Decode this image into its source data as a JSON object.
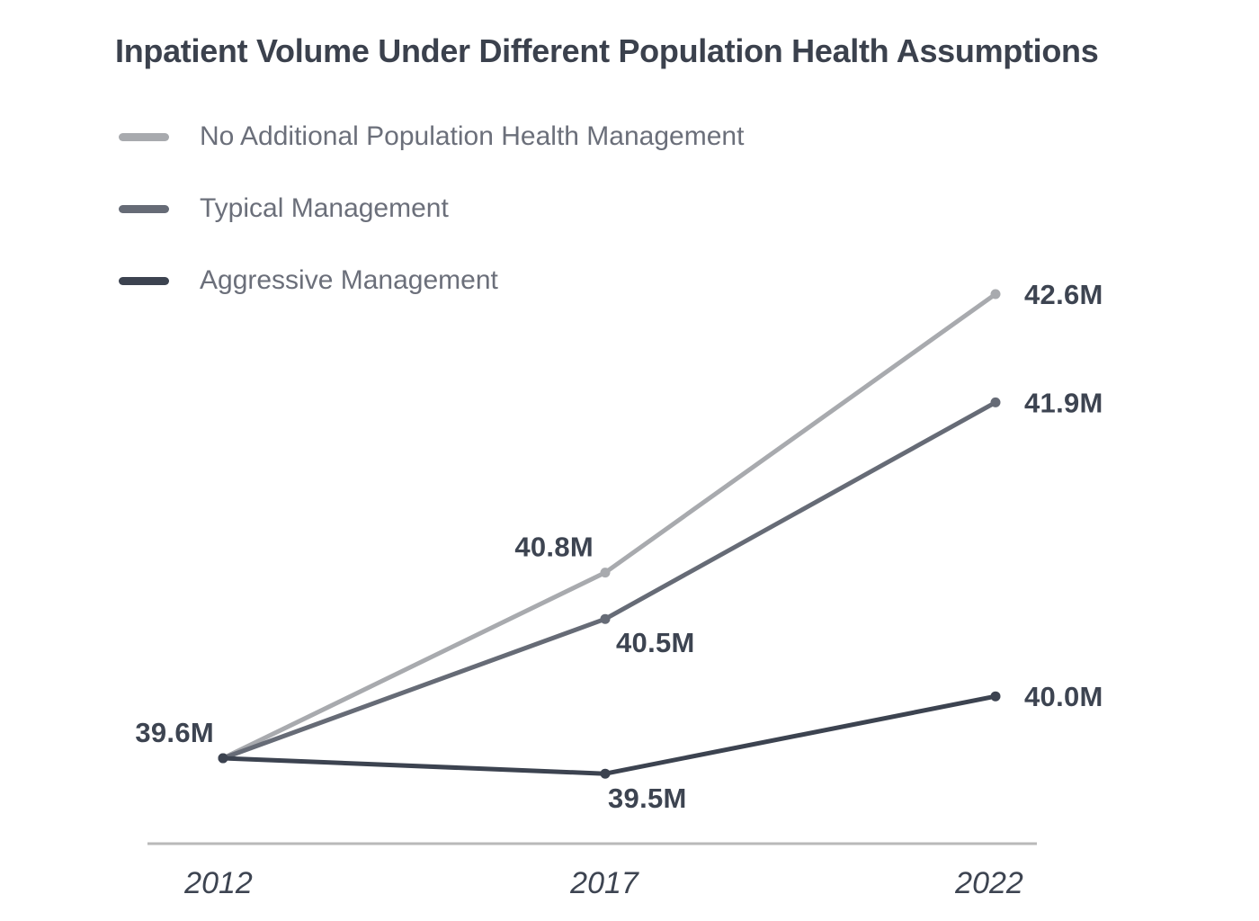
{
  "title": "Inpatient Volume Under Different Population Health Assumptions",
  "chart_data": {
    "type": "line",
    "title": "Inpatient Volume Under Different Population Health Assumptions",
    "categories": [
      "2012",
      "2017",
      "2022"
    ],
    "xlabel": "",
    "ylabel": "",
    "unit": "M",
    "ylim": [
      39.3,
      43.0
    ],
    "grid": false,
    "y_axis_shown": false,
    "legend_position": "top-left",
    "shared_start_label": "39.6M",
    "series": [
      {
        "name": "No Additional Population Health Management",
        "color": "#a8aaae",
        "values": [
          39.6,
          40.8,
          42.6
        ],
        "point_labels": [
          "",
          "40.8M",
          "42.6M"
        ]
      },
      {
        "name": "Typical Management",
        "color": "#666b76",
        "values": [
          39.6,
          40.5,
          41.9
        ],
        "point_labels": [
          "",
          "40.5M",
          "41.9M"
        ]
      },
      {
        "name": "Aggressive Management",
        "color": "#3c4350",
        "values": [
          39.6,
          39.5,
          40.0
        ],
        "point_labels": [
          "",
          "39.5M",
          "40.0M"
        ]
      }
    ],
    "colors": {
      "title_text": "#3b414d",
      "legend_text": "#6b6f7a",
      "data_label_text": "#3d4451",
      "axis_line": "#b9b9b9",
      "x_tick_text": "#3d4451"
    }
  }
}
